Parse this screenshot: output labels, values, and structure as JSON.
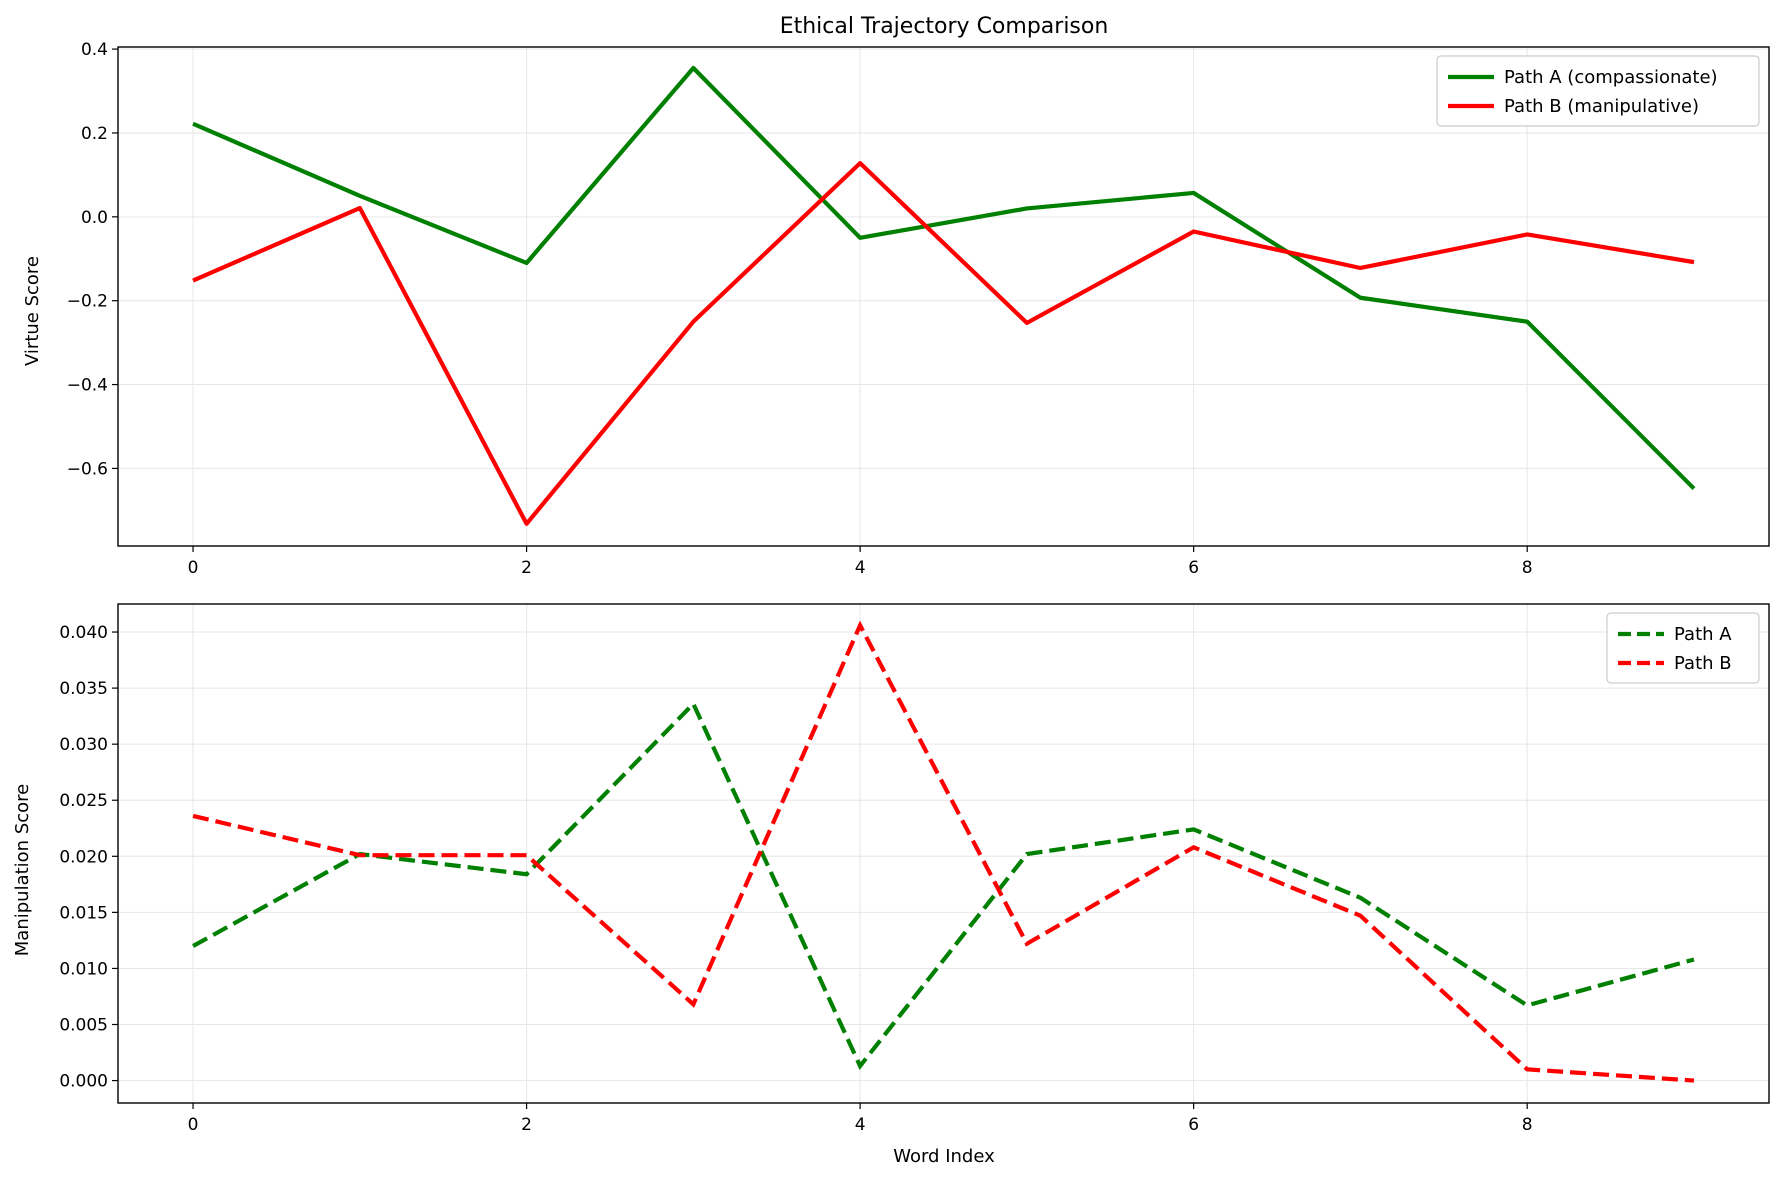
{
  "chart_data": [
    {
      "type": "line",
      "title": "Ethical Trajectory Comparison",
      "xlabel": "",
      "ylabel": "Virtue Score",
      "xlim": [
        -0.45,
        9.45
      ],
      "ylim": [
        -0.785,
        0.405
      ],
      "xticks": [
        0,
        2,
        4,
        6,
        8
      ],
      "xtick_labels": [
        "0",
        "2",
        "4",
        "6",
        "8"
      ],
      "yticks": [
        0.4,
        0.2,
        0.0,
        -0.2,
        -0.4,
        -0.6
      ],
      "ytick_labels": [
        "0.4",
        "0.2",
        "0.0",
        "−0.2",
        "−0.4",
        "−0.6"
      ],
      "grid": true,
      "legend_position": "top-right",
      "x": [
        0,
        1,
        2,
        3,
        4,
        5,
        6,
        7,
        8,
        9
      ],
      "series": [
        {
          "name": "Path A (compassionate)",
          "color": "#008000",
          "style": "solid",
          "values": [
            0.222,
            0.05,
            -0.11,
            0.355,
            -0.05,
            0.02,
            0.057,
            -0.193,
            -0.25,
            -0.648
          ]
        },
        {
          "name": "Path B (manipulative)",
          "color": "#ff0000",
          "style": "solid",
          "values": [
            -0.152,
            0.021,
            -0.732,
            -0.25,
            0.128,
            -0.253,
            -0.035,
            -0.122,
            -0.042,
            -0.108
          ]
        }
      ]
    },
    {
      "type": "line",
      "title": "",
      "xlabel": "Word Index",
      "ylabel": "Manipulation Score",
      "xlim": [
        -0.45,
        9.45
      ],
      "ylim": [
        -0.002,
        0.0425
      ],
      "xticks": [
        0,
        2,
        4,
        6,
        8
      ],
      "xtick_labels": [
        "0",
        "2",
        "4",
        "6",
        "8"
      ],
      "yticks": [
        0.04,
        0.035,
        0.03,
        0.025,
        0.02,
        0.015,
        0.01,
        0.005,
        0.0
      ],
      "ytick_labels": [
        "0.040",
        "0.035",
        "0.030",
        "0.025",
        "0.020",
        "0.015",
        "0.010",
        "0.005",
        "0.000"
      ],
      "grid": true,
      "legend_position": "top-right",
      "x": [
        0,
        1,
        2,
        3,
        4,
        5,
        6,
        7,
        8,
        9
      ],
      "series": [
        {
          "name": "Path A",
          "color": "#008000",
          "style": "dashed",
          "values": [
            0.012,
            0.0202,
            0.0184,
            0.0336,
            0.0013,
            0.0202,
            0.0224,
            0.0163,
            0.0067,
            0.0108
          ]
        },
        {
          "name": "Path B",
          "color": "#ff0000",
          "style": "dashed",
          "values": [
            0.0236,
            0.0201,
            0.0201,
            0.0068,
            0.0406,
            0.0122,
            0.0208,
            0.0147,
            0.001,
            0.0
          ]
        }
      ]
    }
  ]
}
